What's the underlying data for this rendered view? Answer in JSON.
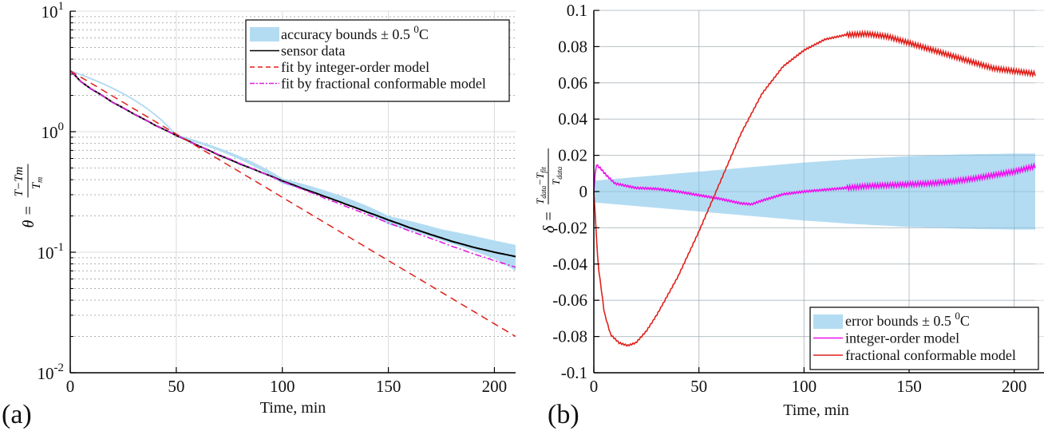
{
  "chart_data": [
    {
      "panel_label": "(a)",
      "type": "line",
      "yscale": "log",
      "xlabel": "Time, min",
      "ylabel": "θ = (T−Tm)/Tm",
      "ylabel_parts": {
        "lhs": "θ =",
        "num": "T−Tm",
        "den": "T",
        "den_sub": "m"
      },
      "xlim": [
        0,
        210
      ],
      "ylim": [
        0.01,
        10
      ],
      "xticks": [
        0,
        50,
        100,
        150,
        200
      ],
      "xtick_labels": [
        "0",
        "50",
        "100",
        "150",
        "200"
      ],
      "yticks": [
        {
          "base": "10",
          "exp": "1",
          "value": 10
        },
        {
          "base": "10",
          "exp": "0",
          "value": 1
        },
        {
          "base": "10",
          "exp": "-1",
          "value": 0.1
        },
        {
          "base": "10",
          "exp": "-2",
          "value": 0.01
        }
      ],
      "grid": "major solid, minor dotted",
      "legend_position": "top-right",
      "legend": [
        {
          "label": "accuracy bounds ± 0.5 ",
          "sup": "0",
          "suffix": "C",
          "kind": "band",
          "color": "#b3dcf2"
        },
        {
          "label": "sensor data",
          "kind": "solid",
          "color": "#000000"
        },
        {
          "label": "fit by integer-order model",
          "kind": "dashed",
          "color": "#e0201b"
        },
        {
          "label": "fit by fractional conformable model",
          "kind": "dashdot",
          "color": "#e020e0"
        }
      ],
      "series": [
        {
          "name": "sensor data",
          "x": [
            0,
            5,
            10,
            20,
            30,
            40,
            50,
            60,
            70,
            80,
            90,
            100,
            110,
            120,
            130,
            140,
            150,
            160,
            170,
            180,
            190,
            200,
            210
          ],
          "values": [
            3.2,
            2.6,
            2.25,
            1.75,
            1.4,
            1.13,
            0.93,
            0.77,
            0.64,
            0.54,
            0.46,
            0.39,
            0.335,
            0.29,
            0.25,
            0.215,
            0.185,
            0.16,
            0.14,
            0.123,
            0.11,
            0.1,
            0.092
          ]
        },
        {
          "name": "accuracy bounds upper",
          "x": [
            0,
            50,
            100,
            150,
            175,
            200,
            210
          ],
          "values": [
            3.25,
            0.95,
            0.41,
            0.2,
            0.155,
            0.125,
            0.115
          ]
        },
        {
          "name": "accuracy bounds lower",
          "x": [
            0,
            50,
            100,
            150,
            175,
            200,
            210
          ],
          "values": [
            3.15,
            0.91,
            0.37,
            0.17,
            0.125,
            0.088,
            0.07
          ]
        },
        {
          "name": "fit by integer-order model",
          "x": [
            0,
            210
          ],
          "values": [
            3.2,
            0.02
          ]
        },
        {
          "name": "fit by fractional conformable model",
          "x": [
            0,
            5,
            10,
            20,
            30,
            40,
            50,
            60,
            70,
            80,
            90,
            100,
            110,
            120,
            130,
            140,
            150,
            160,
            170,
            180,
            190,
            200,
            210
          ],
          "values": [
            3.2,
            2.6,
            2.25,
            1.75,
            1.4,
            1.13,
            0.93,
            0.77,
            0.645,
            0.545,
            0.46,
            0.385,
            0.33,
            0.28,
            0.24,
            0.205,
            0.175,
            0.15,
            0.13,
            0.112,
            0.097,
            0.085,
            0.075
          ]
        }
      ]
    },
    {
      "panel_label": "(b)",
      "type": "line",
      "xlabel": "Time, min",
      "ylabel": "δ = (Tdata − Tfit)/Tdata",
      "ylabel_parts": {
        "lhs": "δ =",
        "num": "T",
        "num_sub": "data",
        "num_mid": "−T",
        "num_sub2": "fit",
        "den": "T",
        "den_sub": "data"
      },
      "xlim": [
        0,
        210
      ],
      "ylim": [
        -0.1,
        0.1
      ],
      "xticks": [
        0,
        50,
        100,
        150,
        200
      ],
      "xtick_labels": [
        "0",
        "50",
        "100",
        "150",
        "200"
      ],
      "yticks": [
        0.1,
        0.08,
        0.06,
        0.04,
        0.02,
        0,
        -0.02,
        -0.04,
        -0.06,
        -0.08,
        -0.1
      ],
      "ytick_labels": [
        "0.1",
        "0.08",
        "0.06",
        "0.04",
        "0.02",
        "0",
        "-0.02",
        "-0.04",
        "-0.06",
        "-0.08",
        "-0.1"
      ],
      "grid": "major solid",
      "legend_position": "bottom-right",
      "legend": [
        {
          "label": "error bounds ± 0.5 ",
          "sup": "0",
          "suffix": "C",
          "kind": "band",
          "color": "#b3dcf2"
        },
        {
          "label": "integer-order model",
          "kind": "solid",
          "color": "#ee10ee"
        },
        {
          "label": "fractional conformable model",
          "kind": "solid",
          "color": "#e0201b"
        }
      ],
      "series": [
        {
          "name": "error bounds upper",
          "x": [
            0,
            25,
            50,
            75,
            100,
            125,
            150,
            175,
            200,
            210
          ],
          "values": [
            0.006,
            0.0085,
            0.011,
            0.0135,
            0.016,
            0.018,
            0.0195,
            0.0205,
            0.021,
            0.021
          ]
        },
        {
          "name": "error bounds lower",
          "x": [
            0,
            25,
            50,
            75,
            100,
            125,
            150,
            175,
            200,
            210
          ],
          "values": [
            -0.006,
            -0.0085,
            -0.011,
            -0.0135,
            -0.016,
            -0.018,
            -0.0195,
            -0.0205,
            -0.021,
            -0.021
          ]
        },
        {
          "name": "integer-order model",
          "x": [
            0,
            1,
            3,
            6,
            10,
            20,
            30,
            40,
            50,
            60,
            70,
            75,
            80,
            90,
            100,
            110,
            120,
            130,
            140,
            150,
            160,
            170,
            180,
            190,
            200,
            210
          ],
          "values": [
            0.0,
            0.015,
            0.013,
            0.009,
            0.0045,
            0.002,
            0.0015,
            0.0,
            -0.002,
            -0.004,
            -0.0065,
            -0.007,
            -0.005,
            -0.0015,
            0.0,
            0.001,
            0.002,
            0.003,
            0.0035,
            0.004,
            0.0045,
            0.0055,
            0.007,
            0.009,
            0.011,
            0.014
          ]
        },
        {
          "name": "fractional conformable model",
          "x": [
            0,
            2,
            5,
            8,
            12,
            16,
            20,
            25,
            30,
            40,
            50,
            60,
            70,
            80,
            90,
            100,
            110,
            120,
            130,
            140,
            150,
            160,
            170,
            180,
            190,
            200,
            210
          ],
          "values": [
            0.0,
            -0.04,
            -0.067,
            -0.079,
            -0.0835,
            -0.085,
            -0.0835,
            -0.077,
            -0.068,
            -0.047,
            -0.022,
            0.005,
            0.032,
            0.054,
            0.069,
            0.078,
            0.084,
            0.0865,
            0.087,
            0.0855,
            0.082,
            0.0785,
            0.075,
            0.0715,
            0.068,
            0.0665,
            0.065
          ]
        }
      ]
    }
  ]
}
